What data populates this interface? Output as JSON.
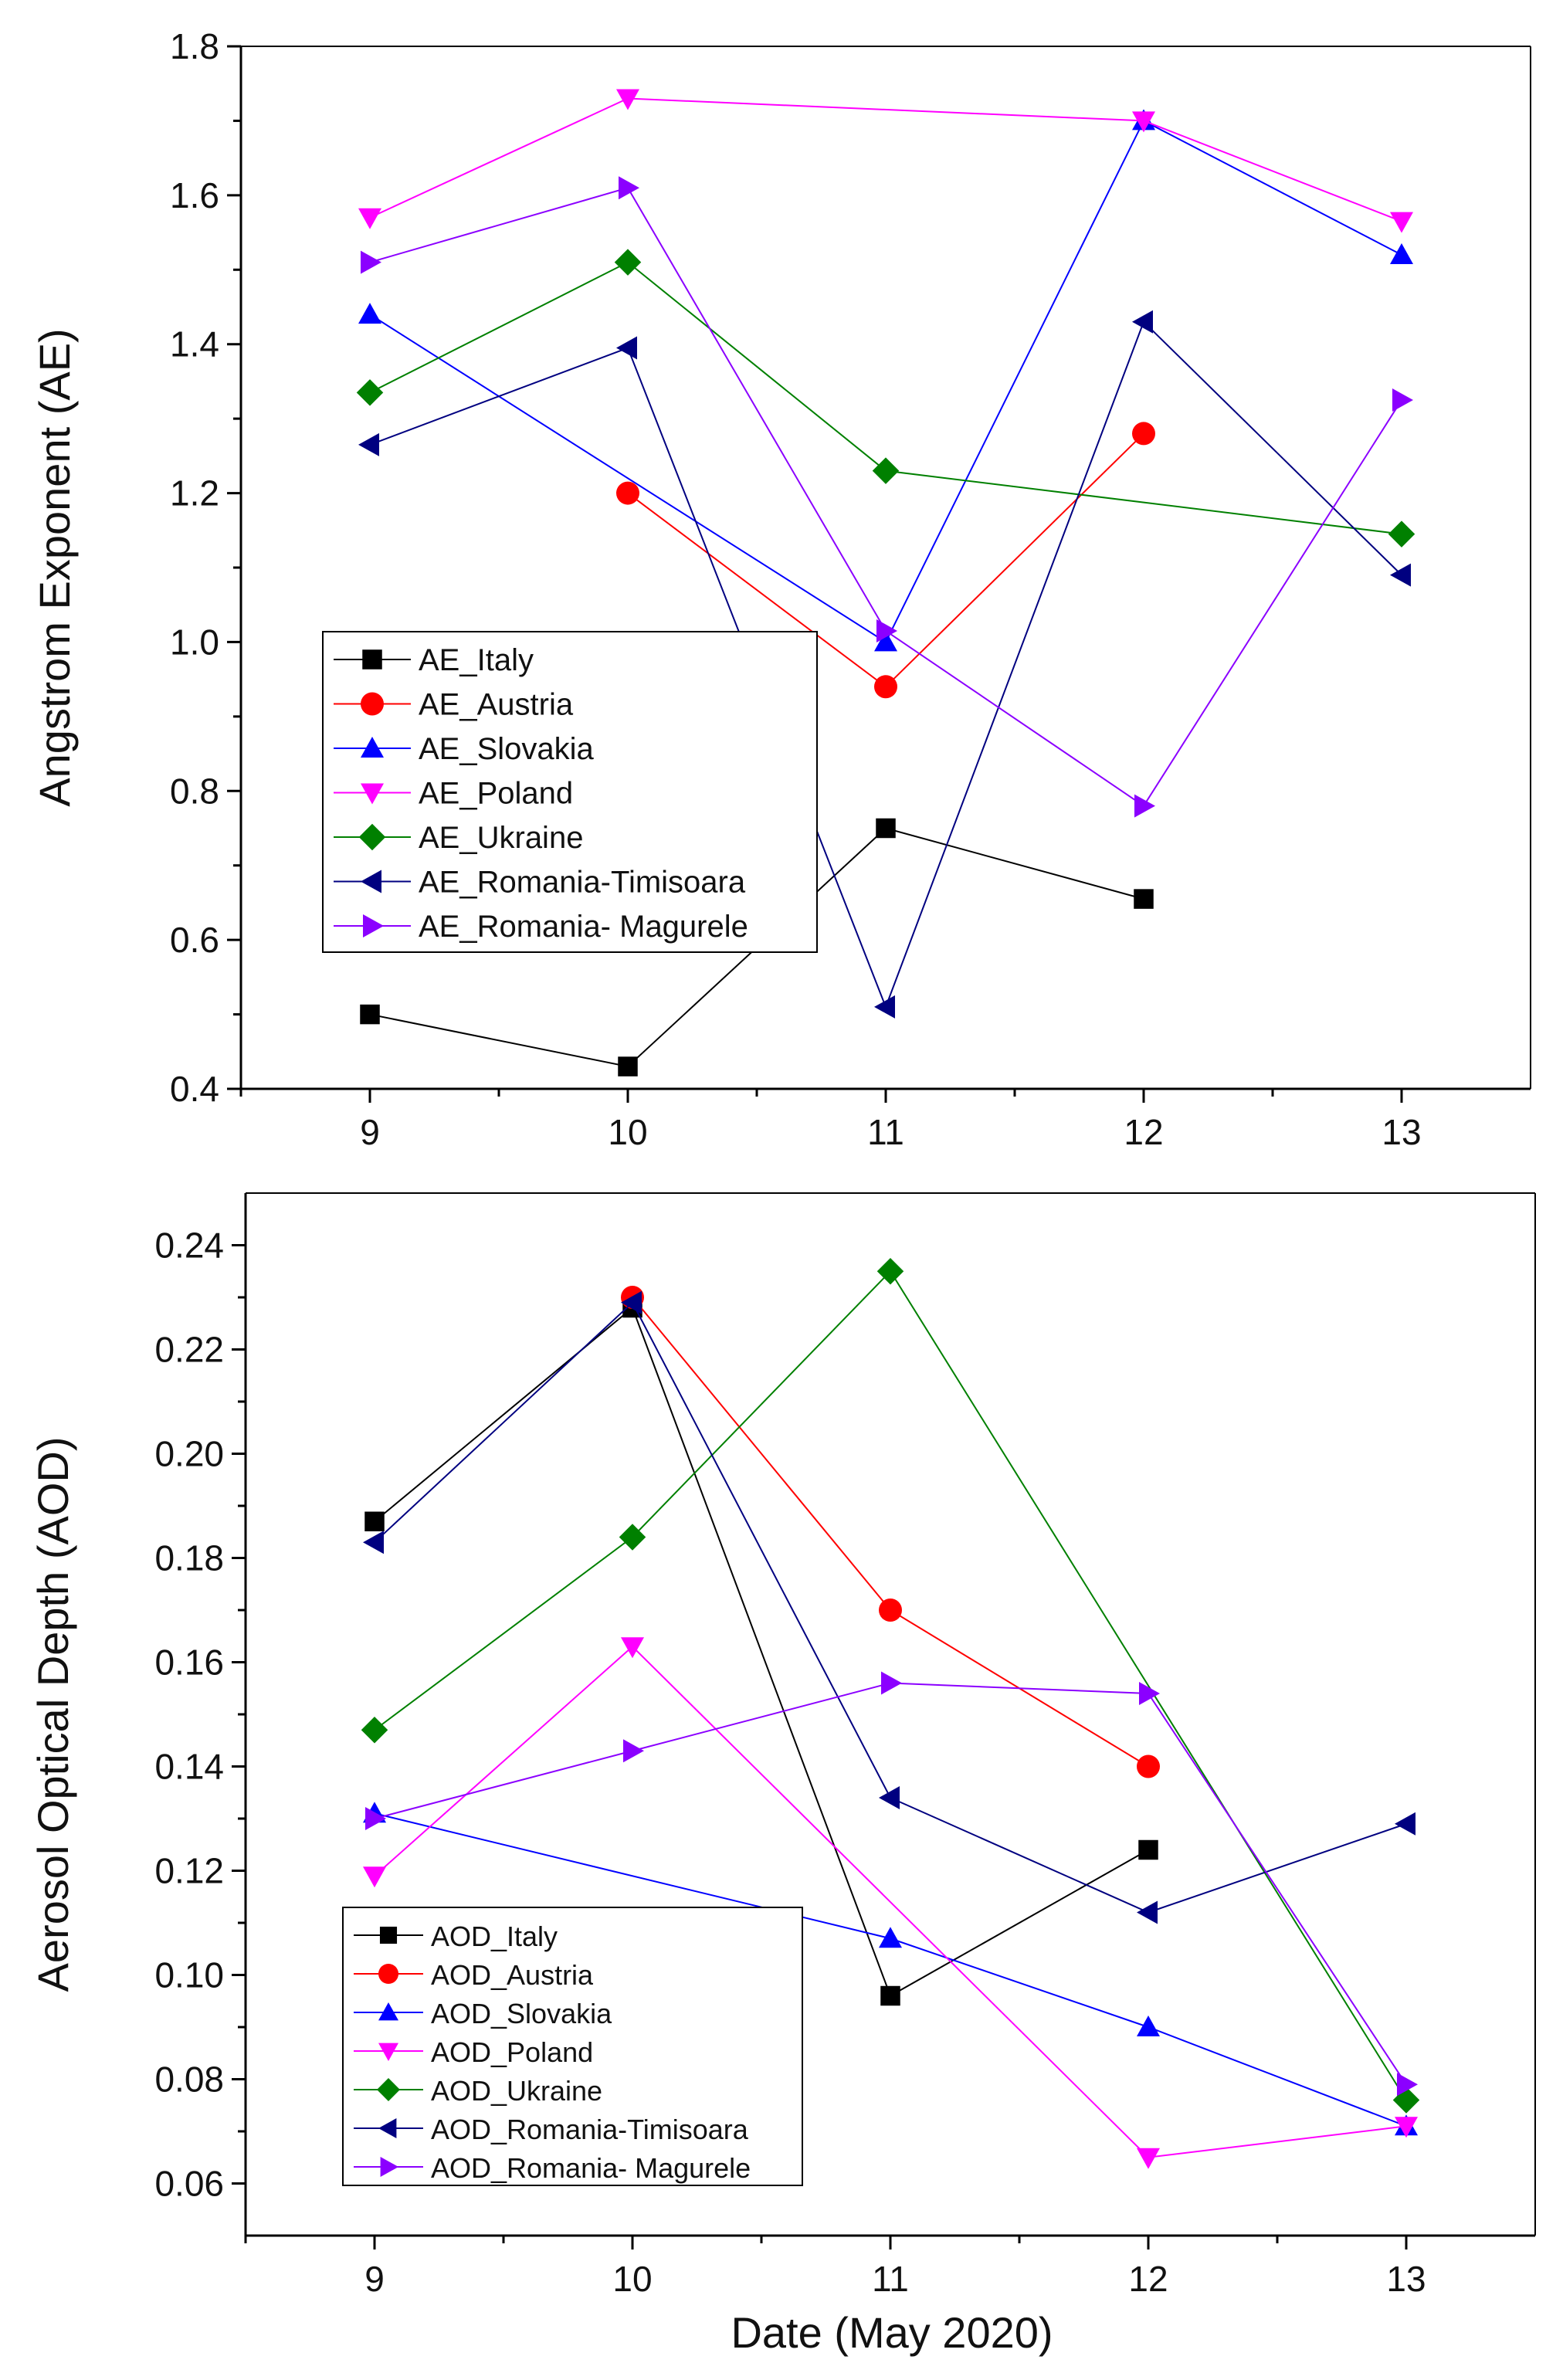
{
  "chart_data": [
    {
      "type": "line",
      "title": "",
      "xlabel": "",
      "ylabel": "Angstrom Exponent (AE)",
      "x": [
        9,
        10,
        11,
        12,
        13
      ],
      "xlim": [
        8.5,
        13.5
      ],
      "ylim": [
        0.4,
        1.8
      ],
      "xticks": [
        "9",
        "10",
        "11",
        "12",
        "13"
      ],
      "yticks": [
        "0.4",
        "0.6",
        "0.8",
        "1.0",
        "1.2",
        "1.4",
        "1.6",
        "1.8"
      ],
      "grid": false,
      "legend_position": "lower-left",
      "series": [
        {
          "name": "AE_Italy",
          "color": "#000000",
          "marker": "square",
          "values": [
            0.5,
            0.43,
            0.75,
            0.655,
            null
          ]
        },
        {
          "name": "AE_Austria",
          "color": "#ff0000",
          "marker": "circle",
          "values": [
            null,
            1.2,
            0.94,
            1.28,
            null
          ]
        },
        {
          "name": "AE_Slovakia",
          "color": "#0000ff",
          "marker": "triangle-up",
          "values": [
            1.44,
            null,
            1.0,
            1.7,
            1.52
          ]
        },
        {
          "name": "AE_Poland",
          "color": "#ff00ff",
          "marker": "triangle-down",
          "values": [
            1.57,
            1.73,
            null,
            1.7,
            1.565
          ]
        },
        {
          "name": "AE_Ukraine",
          "color": "#008000",
          "marker": "diamond",
          "values": [
            1.335,
            1.51,
            1.23,
            null,
            1.145
          ]
        },
        {
          "name": "AE_Romania-Timisoara",
          "color": "#000080",
          "marker": "triangle-left",
          "values": [
            1.265,
            1.395,
            0.51,
            1.43,
            1.09
          ]
        },
        {
          "name": "AE_Romania- Magurele",
          "color": "#8b00ff",
          "marker": "triangle-right",
          "values": [
            1.51,
            1.61,
            1.015,
            0.78,
            1.325
          ]
        }
      ]
    },
    {
      "type": "line",
      "title": "",
      "xlabel": "Date (May 2020)",
      "ylabel": "Aerosol Optical Depth (AOD)",
      "x": [
        9,
        10,
        11,
        12,
        13
      ],
      "xlim": [
        8.5,
        13.5
      ],
      "ylim": [
        0.05,
        0.25
      ],
      "xticks": [
        "9",
        "10",
        "11",
        "12",
        "13"
      ],
      "yticks": [
        "0.06",
        "0.08",
        "0.10",
        "0.12",
        "0.14",
        "0.16",
        "0.18",
        "0.20",
        "0.22",
        "0.24"
      ],
      "grid": false,
      "legend_position": "lower-left",
      "series": [
        {
          "name": "AOD_Italy",
          "color": "#000000",
          "marker": "square",
          "values": [
            0.187,
            0.228,
            0.096,
            0.124,
            null
          ]
        },
        {
          "name": "AOD_Austria",
          "color": "#ff0000",
          "marker": "circle",
          "values": [
            null,
            0.23,
            0.17,
            0.14,
            null
          ]
        },
        {
          "name": "AOD_Slovakia",
          "color": "#0000ff",
          "marker": "triangle-up",
          "values": [
            0.131,
            null,
            0.107,
            0.09,
            0.071
          ]
        },
        {
          "name": "AOD_Poland",
          "color": "#ff00ff",
          "marker": "triangle-down",
          "values": [
            0.119,
            0.163,
            null,
            0.065,
            0.071
          ]
        },
        {
          "name": "AOD_Ukraine",
          "color": "#008000",
          "marker": "diamond",
          "values": [
            0.147,
            0.184,
            0.235,
            null,
            0.076
          ]
        },
        {
          "name": "AOD_Romania-Timisoara",
          "color": "#000080",
          "marker": "triangle-left",
          "values": [
            0.183,
            0.229,
            0.134,
            0.112,
            0.129
          ]
        },
        {
          "name": "AOD_Romania- Magurele",
          "color": "#8b00ff",
          "marker": "triangle-right",
          "values": [
            0.13,
            0.143,
            0.156,
            0.154,
            0.079
          ]
        }
      ]
    }
  ]
}
